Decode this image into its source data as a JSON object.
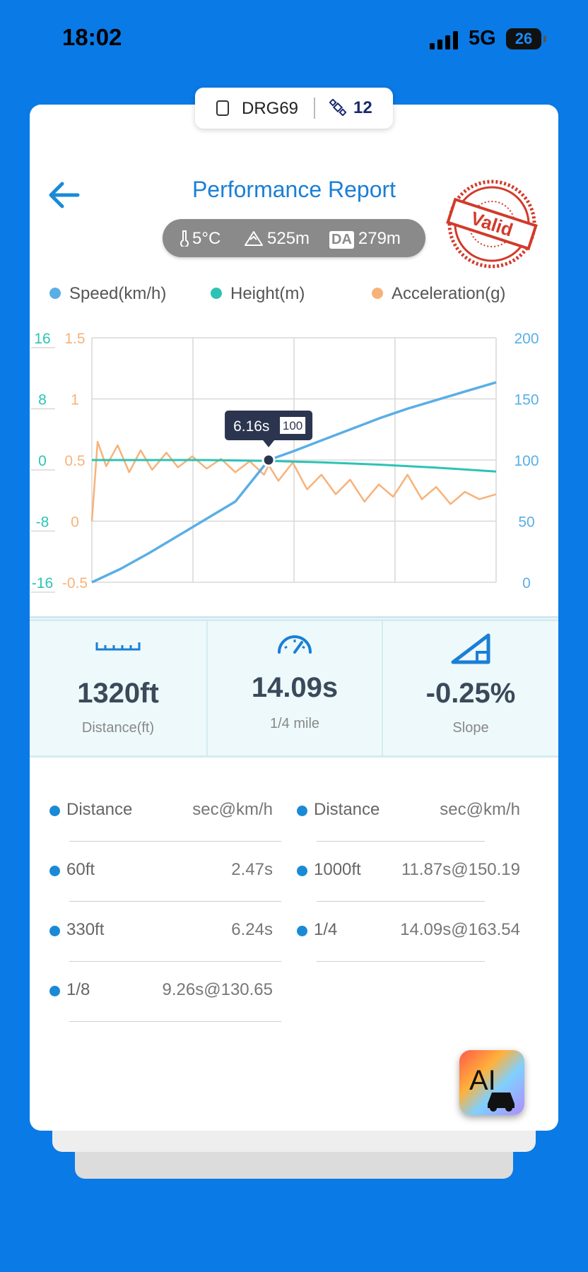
{
  "status_bar": {
    "time": "18:02",
    "network": "5G",
    "battery": "26"
  },
  "device": {
    "name": "DRG69",
    "satellites": "12"
  },
  "header": {
    "title": "Performance Report",
    "stamp_text": "Valid"
  },
  "conditions": {
    "temperature": "5°C",
    "altitude": "525m",
    "da_label": "DA",
    "density_altitude": "279m"
  },
  "legend": [
    {
      "label": "Speed(km/h)",
      "color": "#5aaee6"
    },
    {
      "label": "Height(m)",
      "color": "#2cc3b5"
    },
    {
      "label": "Acceleration(g)",
      "color": "#f7b27a"
    }
  ],
  "chart_data": {
    "type": "line",
    "x_range_s": [
      0,
      14.09
    ],
    "left_axis_height": {
      "ticks": [
        "16",
        "8",
        "0",
        "-8",
        "-16"
      ],
      "range": [
        -16,
        16
      ],
      "color": "#2cc3b5"
    },
    "left_axis_accel": {
      "ticks": [
        "1.5",
        "1",
        "0.5",
        "0",
        "-0.5"
      ],
      "range": [
        -0.5,
        1.5
      ],
      "color": "#f7b27a"
    },
    "right_axis_speed": {
      "ticks": [
        "200",
        "150",
        "100",
        "50",
        "0"
      ],
      "range": [
        0,
        200
      ],
      "color": "#5aaee6"
    },
    "series": [
      {
        "name": "Speed(km/h)",
        "x": [
          0,
          1,
          2,
          3,
          4,
          5,
          6.16,
          7,
          8,
          9,
          10,
          11,
          12,
          13,
          14.09
        ],
        "values": [
          0,
          11,
          24,
          38,
          52,
          66,
          100,
          107,
          116,
          125,
          134,
          142,
          149,
          156,
          163.5
        ]
      },
      {
        "name": "Height(m)",
        "x": [
          0,
          2,
          4,
          6,
          8,
          10,
          12,
          14.09
        ],
        "values": [
          0,
          0,
          0,
          -0.1,
          -0.3,
          -0.6,
          -1.0,
          -1.5
        ]
      },
      {
        "name": "Acceleration(g)",
        "x": [
          0,
          0.2,
          0.5,
          0.9,
          1.3,
          1.7,
          2.1,
          2.6,
          3.0,
          3.5,
          4.0,
          4.5,
          5.0,
          5.5,
          6.0,
          6.16,
          6.5,
          7.0,
          7.5,
          8.0,
          8.5,
          9.0,
          9.5,
          10.0,
          10.5,
          11.0,
          11.5,
          12.0,
          12.5,
          13.0,
          13.5,
          14.09
        ],
        "values": [
          0,
          0.65,
          0.45,
          0.62,
          0.4,
          0.58,
          0.42,
          0.56,
          0.44,
          0.53,
          0.43,
          0.51,
          0.4,
          0.49,
          0.38,
          0.46,
          0.33,
          0.48,
          0.26,
          0.38,
          0.22,
          0.34,
          0.16,
          0.3,
          0.2,
          0.38,
          0.18,
          0.28,
          0.14,
          0.24,
          0.18,
          0.22
        ]
      }
    ],
    "tooltip": {
      "time": "6.16s",
      "speed": "100"
    }
  },
  "stats": [
    {
      "value": "1320ft",
      "label": "Distance(ft)",
      "icon": "ruler-icon"
    },
    {
      "value": "14.09s",
      "label": "1/4 mile",
      "icon": "speedometer-icon"
    },
    {
      "value": "-0.25%",
      "label": "Slope",
      "icon": "slope-icon"
    }
  ],
  "splits": {
    "headers": [
      {
        "key": "Distance",
        "value": "sec@km/h"
      },
      {
        "key": "Distance",
        "value": "sec@km/h"
      }
    ],
    "left": [
      {
        "key": "60ft",
        "value": "2.47s"
      },
      {
        "key": "330ft",
        "value": "6.24s"
      },
      {
        "key": "1/8",
        "value": "9.26s@130.65"
      }
    ],
    "right": [
      {
        "key": "1000ft",
        "value": "11.87s@150.19"
      },
      {
        "key": "1/4",
        "value": "14.09s@163.54"
      }
    ]
  },
  "ai_button": {
    "label": "AI"
  }
}
